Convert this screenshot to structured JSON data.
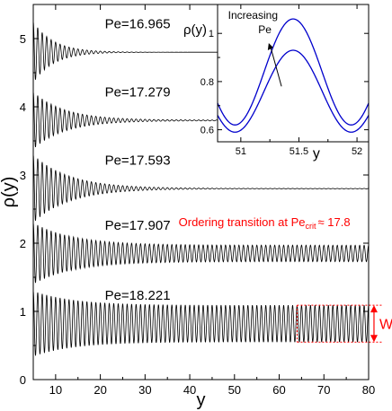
{
  "chart_data": [
    {
      "type": "line",
      "panel": "main",
      "xlabel": "y",
      "ylabel": "ρ(y)",
      "xlim": [
        5,
        80
      ],
      "ylim": [
        0,
        5.5
      ],
      "xticks": [
        10,
        20,
        30,
        40,
        50,
        60,
        70,
        80
      ],
      "yticks": [
        0,
        1,
        2,
        3,
        4,
        5
      ],
      "oscillation_period": 1.0,
      "series": [
        {
          "name": "Pe=16.965",
          "label": "Pe=16.965",
          "baseline": 4.8,
          "initial_amplitude": 0.45,
          "decay_length": 4.5,
          "final_amplitude": 0.0
        },
        {
          "name": "Pe=17.279",
          "label": "Pe=17.279",
          "baseline": 3.8,
          "initial_amplitude": 0.42,
          "decay_length": 7.0,
          "final_amplitude": 0.005
        },
        {
          "name": "Pe=17.593",
          "label": "Pe=17.593",
          "baseline": 2.8,
          "initial_amplitude": 0.5,
          "decay_length": 8.0,
          "final_amplitude": 0.003
        },
        {
          "name": "Pe=17.907",
          "label": "Pe=17.907",
          "baseline": 1.85,
          "initial_amplitude": 0.45,
          "decay_length": 9.0,
          "final_amplitude": 0.12
        },
        {
          "name": "Pe=18.221",
          "label": "Pe=18.221",
          "baseline": 0.82,
          "initial_amplitude": 0.48,
          "decay_length": 9.0,
          "final_amplitude": 0.27
        }
      ],
      "annotations": {
        "transition_prefix": "Ordering transition at Pe",
        "transition_sub": "crit",
        "transition_suffix": "≈ 17.8",
        "width_label": "W",
        "color": "#ff0000"
      }
    },
    {
      "type": "line",
      "panel": "inset",
      "xlabel": "y",
      "ylabel": "ρ(y)",
      "xlim": [
        50.8,
        52.1
      ],
      "ylim": [
        0.55,
        1.12
      ],
      "xticks": [
        51,
        51.5,
        52
      ],
      "yticks": [
        0.6,
        0.8,
        1
      ],
      "series": [
        {
          "center": 51.45,
          "mean": 0.76,
          "amplitude": 0.17,
          "period": 1.0
        },
        {
          "center": 51.45,
          "mean": 0.84,
          "amplitude": 0.22,
          "period": 1.0
        }
      ],
      "annotation": {
        "line1": "Increasing",
        "line2": "Pe"
      },
      "line_color": "#0000cc"
    }
  ]
}
